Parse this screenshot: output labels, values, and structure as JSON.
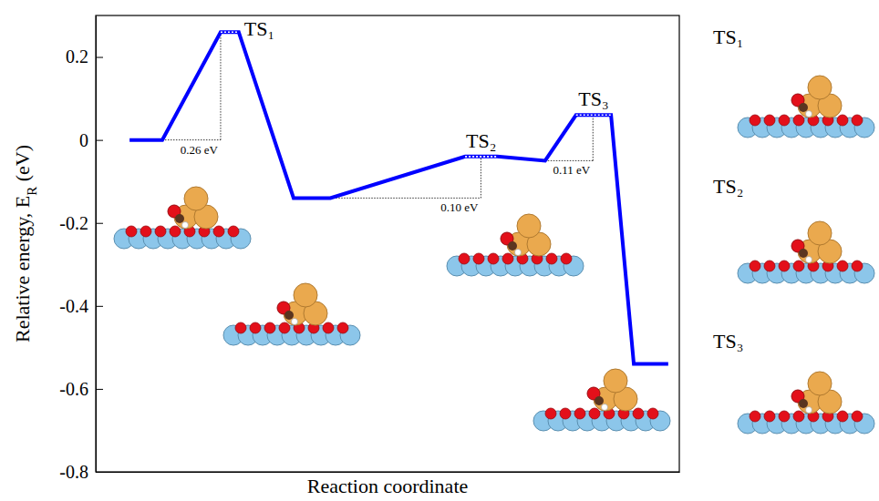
{
  "chart_data": {
    "type": "line",
    "x_label": "Reaction coordinate",
    "y_label": [
      "Relative energy, E",
      "R",
      " (eV)"
    ],
    "xlim": [
      0,
      100
    ],
    "ylim": [
      -0.8,
      0.3
    ],
    "yticks": [
      0.2,
      0,
      -0.2,
      -0.4,
      -0.6,
      -0.8
    ],
    "tick_labels": "y",
    "series": [
      {
        "color": "#0000ff",
        "line_style": "solid",
        "x": [
          5.8,
          11.4,
          21.4,
          24.5,
          33.9,
          40.2,
          63.3,
          68.8,
          77.0,
          82.3,
          88.3,
          92.2,
          98.1
        ],
        "values": [
          0,
          0,
          0.26,
          0.26,
          -0.14,
          -0.14,
          -0.04,
          -0.04,
          -0.05,
          0.06,
          0.06,
          -0.54,
          -0.54
        ]
      }
    ],
    "transition_states": [
      "TS₁",
      "TS₂",
      "TS₃"
    ],
    "barriers": [
      {
        "label": "0.26 eV",
        "value": 0.26,
        "base": 0,
        "x0": 11.4,
        "x1": 21.4
      },
      {
        "label": "0.10 eV",
        "value": 0.1,
        "base": -0.14,
        "x0": 40.2,
        "x1": 66.0
      },
      {
        "label": "0.11 eV",
        "value": 0.11,
        "base": -0.05,
        "x0": 77.0,
        "x1": 85.2
      }
    ],
    "structure_labels": [
      "TS₁",
      "TS₂",
      "TS₃"
    ]
  }
}
